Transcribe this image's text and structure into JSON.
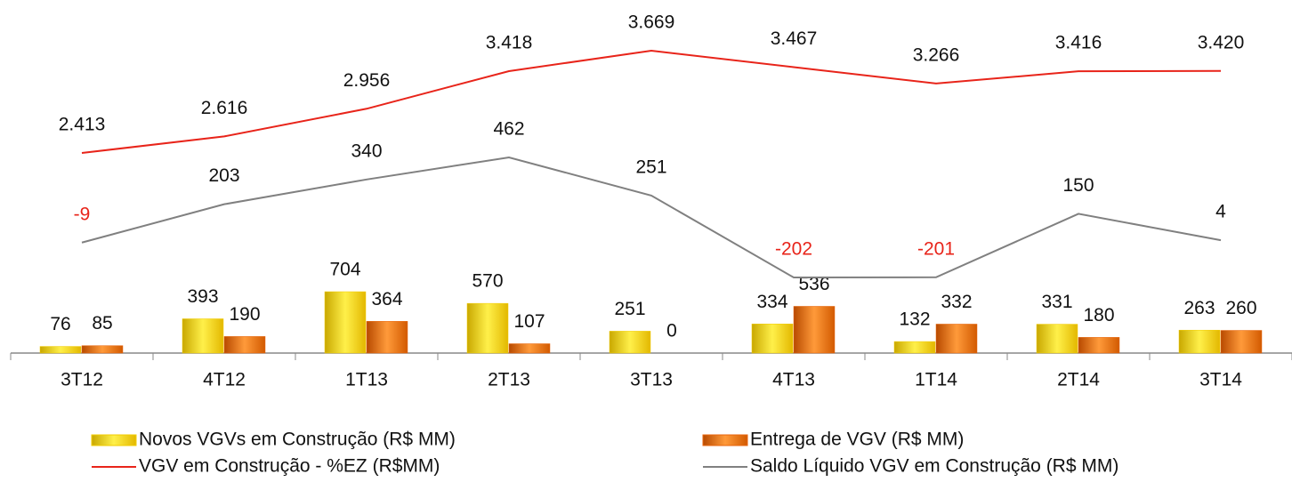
{
  "chart_data": {
    "type": "bar",
    "categories": [
      "3T12",
      "4T12",
      "1T13",
      "2T13",
      "3T13",
      "4T13",
      "1T14",
      "2T14",
      "3T14"
    ],
    "series": [
      {
        "name": "Novos VGVs em Construção (R$ MM)",
        "type": "bar",
        "color": "#f2cc00",
        "values": [
          76,
          393,
          704,
          570,
          251,
          334,
          132,
          331,
          263
        ]
      },
      {
        "name": "Entrega de VGV (R$ MM)",
        "type": "bar",
        "color": "#e8650c",
        "values": [
          85,
          190,
          364,
          107,
          0,
          536,
          332,
          180,
          260
        ]
      },
      {
        "name": "VGV em Construção - %EZ (R$MM)",
        "type": "line",
        "color": "#e8241a",
        "values": [
          2413,
          2616,
          2956,
          3418,
          3669,
          3467,
          3266,
          3416,
          3420
        ],
        "value_labels": [
          "2.413",
          "2.616",
          "2.956",
          "3.418",
          "3.669",
          "3.467",
          "3.266",
          "3.416",
          "3.420"
        ]
      },
      {
        "name": "Saldo Líquido VGV em Construção (R$ MM)",
        "type": "line",
        "color": "#808080",
        "values": [
          -9,
          203,
          340,
          462,
          251,
          -202,
          -201,
          150,
          4
        ]
      }
    ]
  }
}
